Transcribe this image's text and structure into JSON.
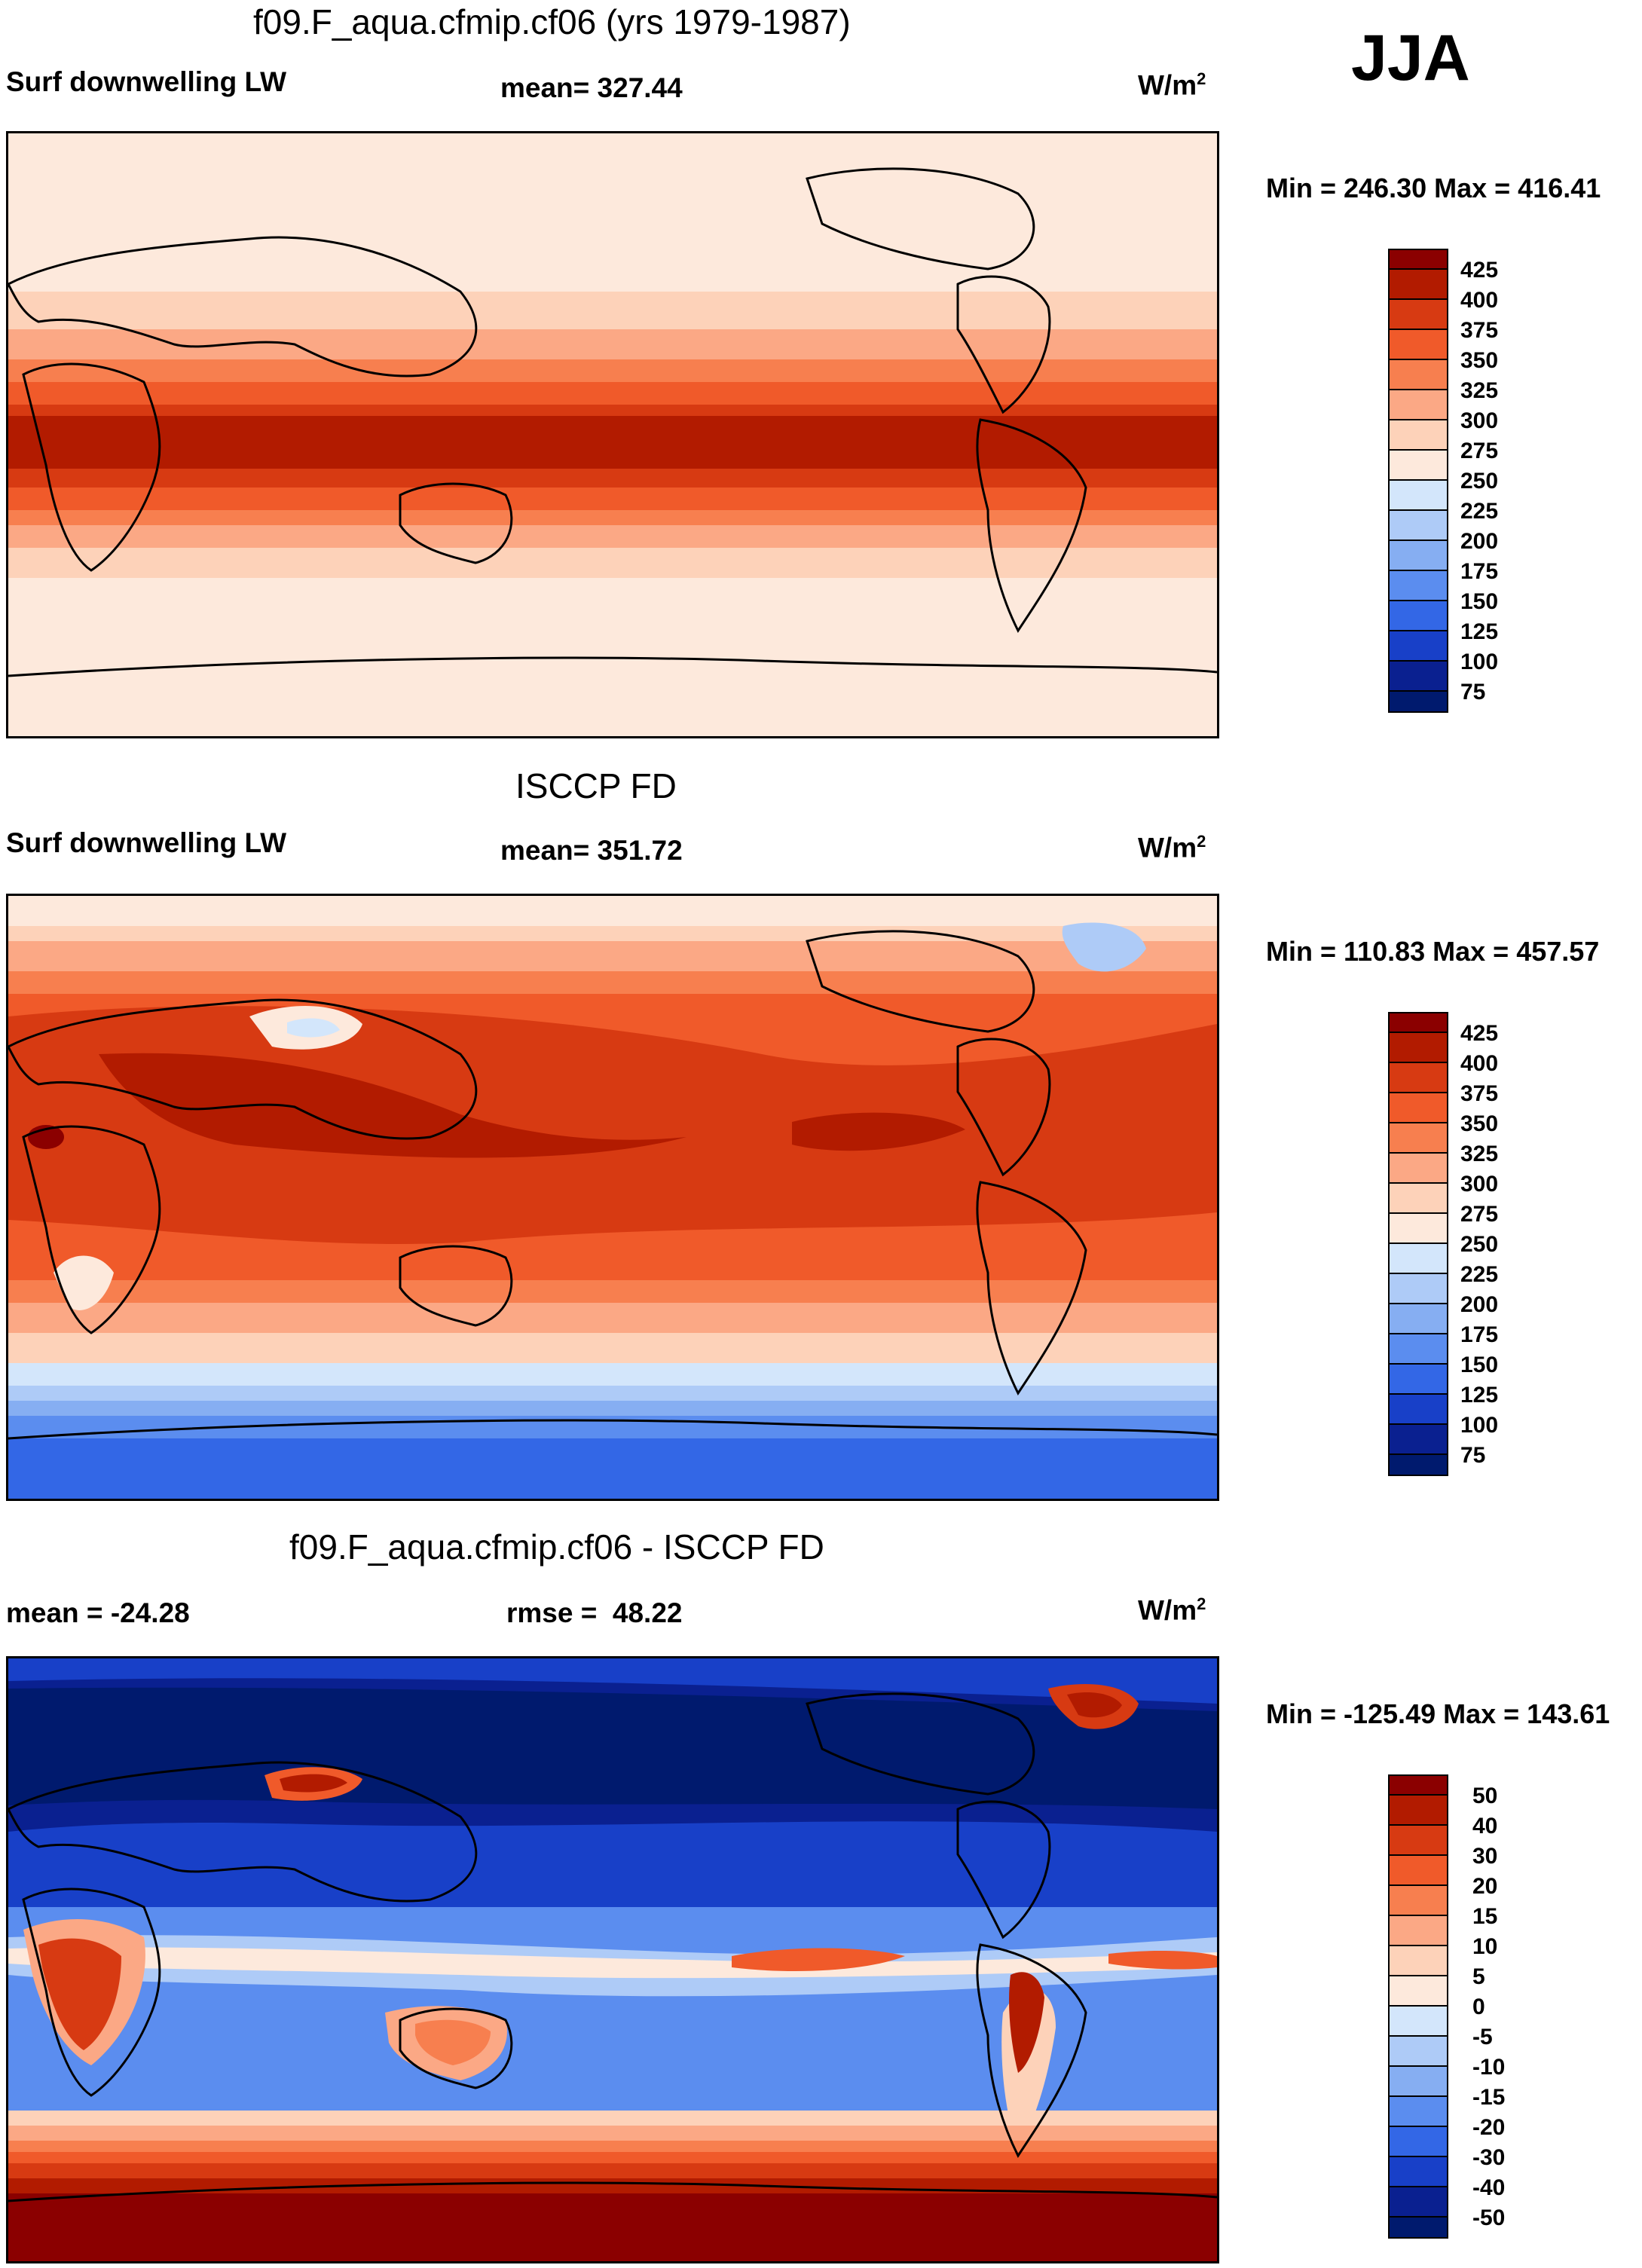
{
  "chart_data": {
    "type": "heatmap",
    "season": "JJA",
    "panels": [
      {
        "title": "f09.F_aqua.cfmip.cf06 (yrs 1979-1987)",
        "left_label": "Surf downwelling LW",
        "center_label": "mean= 327.44",
        "unit_base": "W/m",
        "unit_exp": "2",
        "minmax": "Min = 246.30 Max = 416.41",
        "colorbar": {
          "levels": [
            "425",
            "400",
            "375",
            "350",
            "325",
            "300",
            "275",
            "250",
            "225",
            "200",
            "175",
            "150",
            "125",
            "100",
            "75"
          ],
          "colors": [
            "#8b0000",
            "#b21b00",
            "#d73a12",
            "#f05a2a",
            "#f77f4f",
            "#fba885",
            "#fdd2b9",
            "#fde9dc",
            "#d3e6fb",
            "#aecbf7",
            "#86aef2",
            "#5b8def",
            "#3367e6",
            "#1840c8",
            "#0a2090",
            "#001a6e"
          ]
        }
      },
      {
        "title": "ISCCP FD",
        "left_label": "Surf downwelling LW",
        "center_label": "mean= 351.72",
        "unit_base": "W/m",
        "unit_exp": "2",
        "minmax": "Min = 110.83 Max = 457.57",
        "colorbar": {
          "levels": [
            "425",
            "400",
            "375",
            "350",
            "325",
            "300",
            "275",
            "250",
            "225",
            "200",
            "175",
            "150",
            "125",
            "100",
            "75"
          ],
          "colors": [
            "#8b0000",
            "#b21b00",
            "#d73a12",
            "#f05a2a",
            "#f77f4f",
            "#fba885",
            "#fdd2b9",
            "#fde9dc",
            "#d3e6fb",
            "#aecbf7",
            "#86aef2",
            "#5b8def",
            "#3367e6",
            "#1840c8",
            "#0a2090",
            "#001a6e"
          ]
        }
      },
      {
        "title": "f09.F_aqua.cfmip.cf06 - ISCCP FD",
        "left_label": "mean = -24.28",
        "center_label": "rmse =  48.22",
        "unit_base": "W/m",
        "unit_exp": "2",
        "minmax": "Min = -125.49 Max = 143.61",
        "colorbar": {
          "levels": [
            "50",
            "40",
            "30",
            "20",
            "15",
            "10",
            "5",
            "0",
            "-5",
            "-10",
            "-15",
            "-20",
            "-30",
            "-40",
            "-50"
          ],
          "colors": [
            "#8b0000",
            "#b21b00",
            "#d73a12",
            "#f05a2a",
            "#f77f4f",
            "#fba885",
            "#fdd2b9",
            "#fde9dc",
            "#d3e6fb",
            "#aecbf7",
            "#86aef2",
            "#5b8def",
            "#3367e6",
            "#1840c8",
            "#0a2090",
            "#001a6e"
          ]
        }
      }
    ]
  }
}
